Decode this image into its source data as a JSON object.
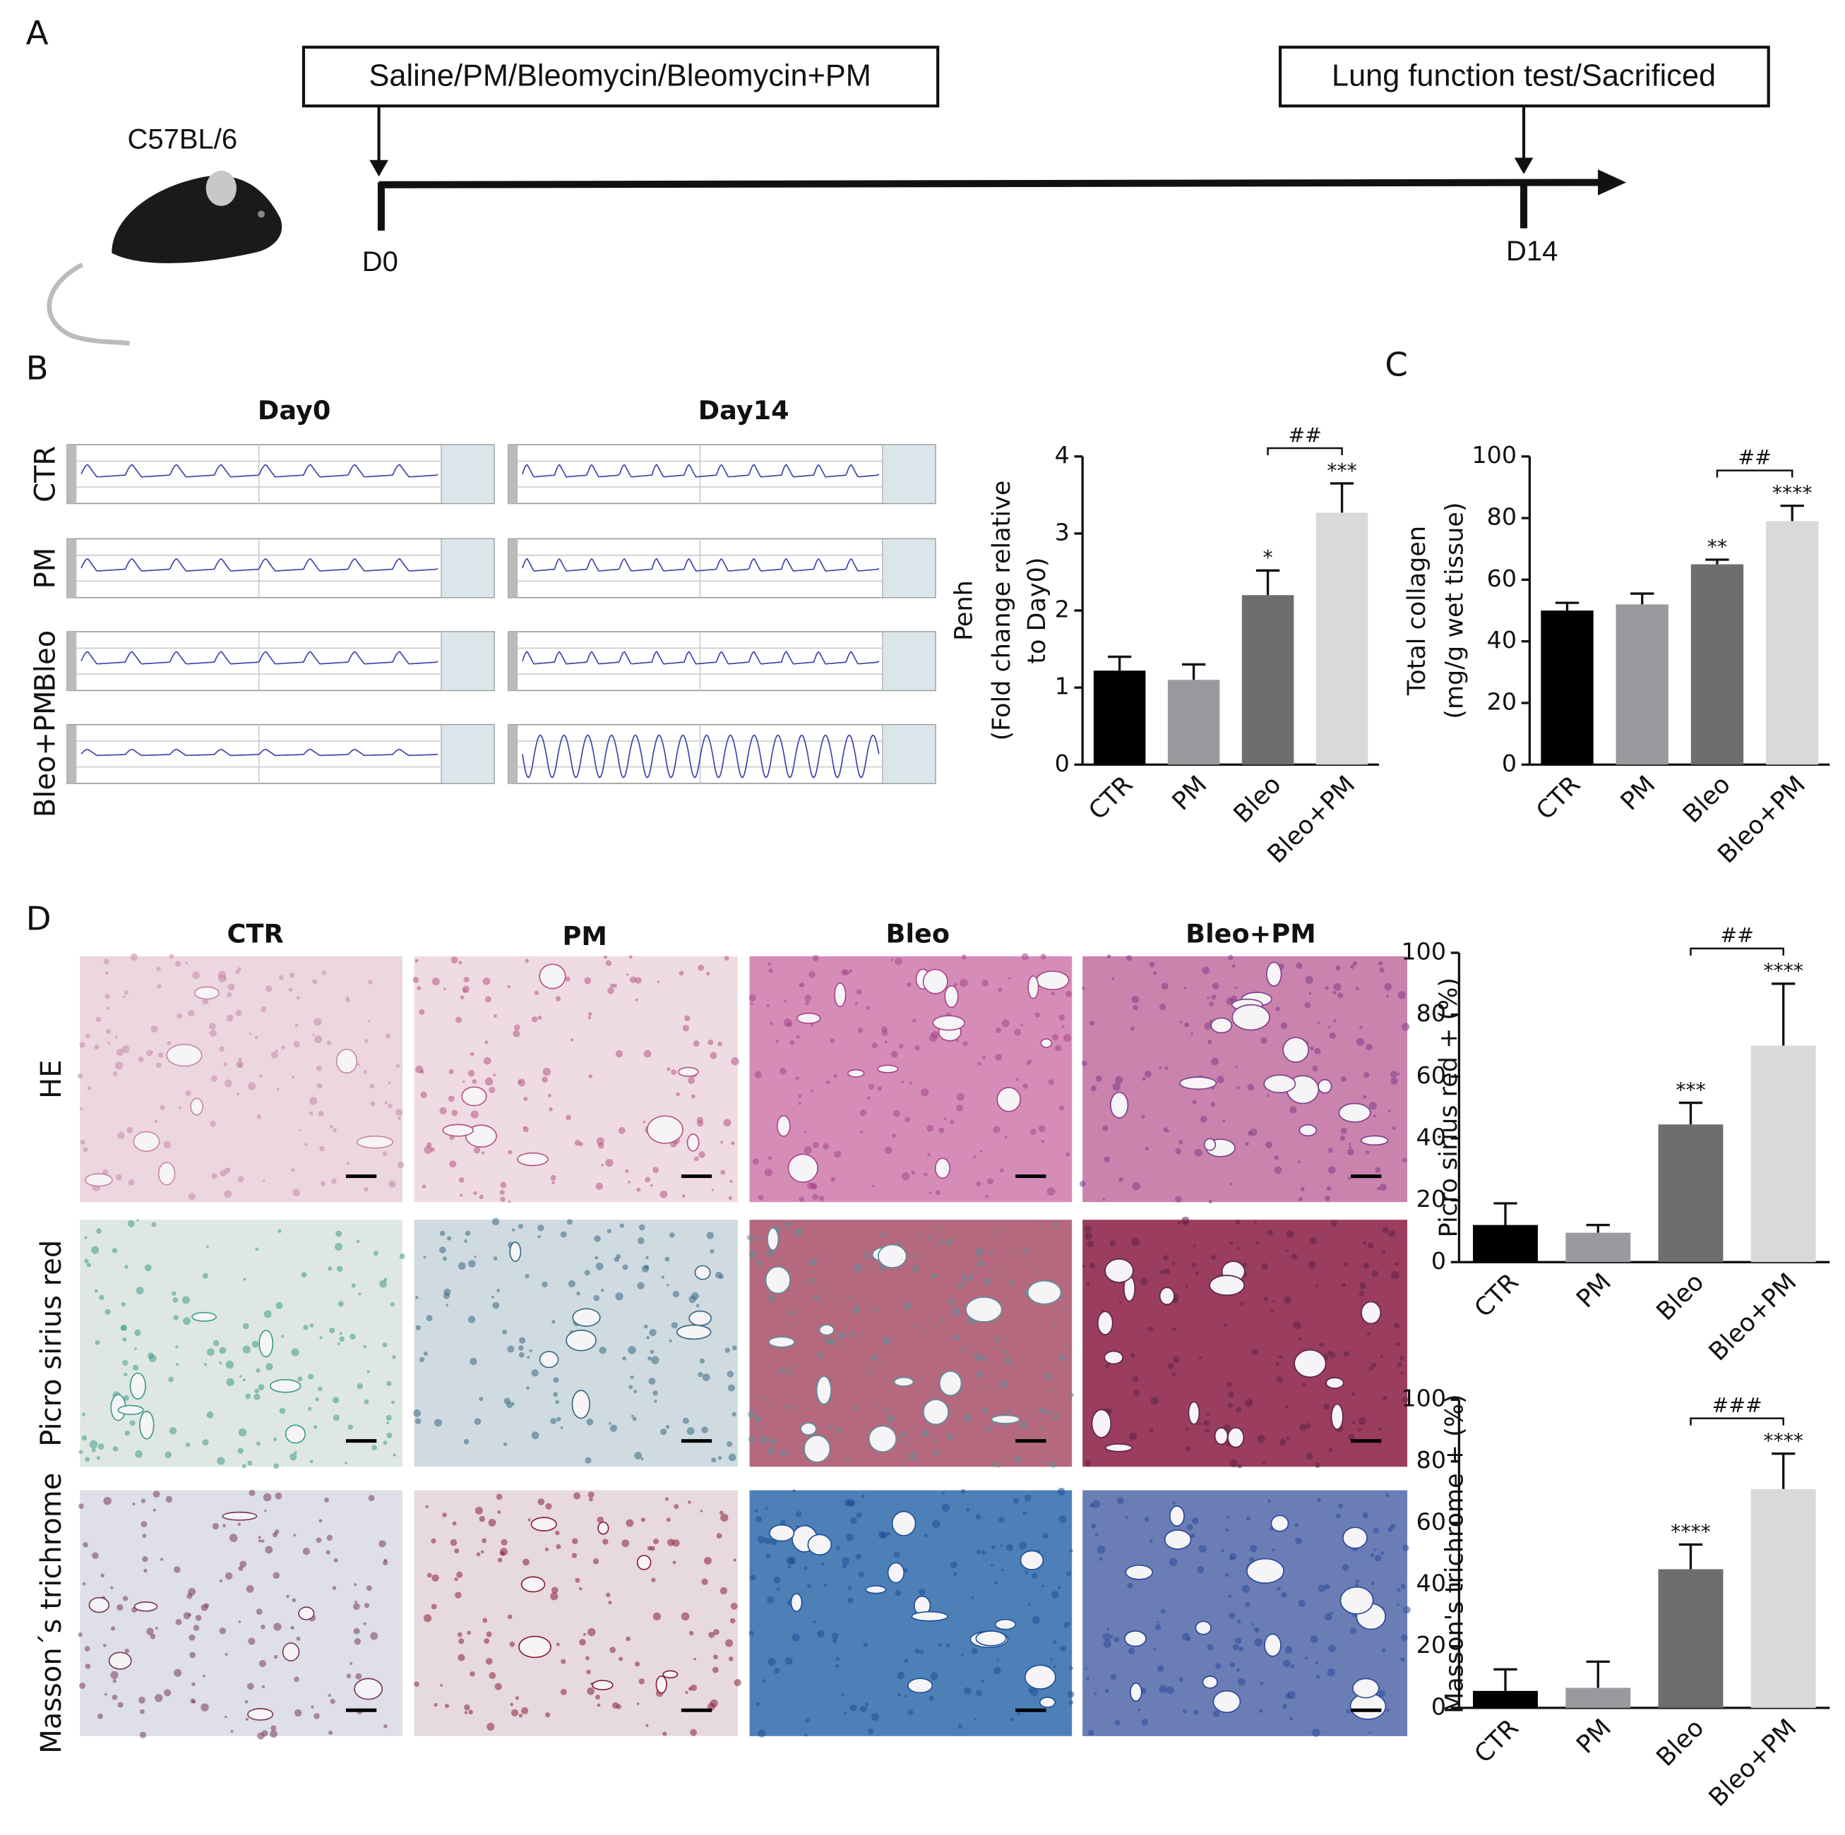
{
  "panels": {
    "a": "A",
    "b": "B",
    "c": "C",
    "d": "D"
  },
  "timeline": {
    "start_box": "Saline/PM/Bleomycin/Bleomycin+PM",
    "end_box": "Lung function test/Sacrificed",
    "strain": "C57BL/6",
    "start_day": "D0",
    "end_day": "D14"
  },
  "traces": {
    "columns": [
      "Day0",
      "Day14"
    ],
    "rows": [
      "CTR",
      "PM",
      "Bleo",
      "Bleo+PM"
    ]
  },
  "histology": {
    "columns": [
      "CTR",
      "PM",
      "Bleo",
      "Bleo+PM"
    ],
    "rows": [
      "HE",
      "Picro sirius red",
      "Masson´s trichrome"
    ]
  },
  "chart_data": [
    {
      "type": "bar",
      "ylabel": [
        "Penh",
        "(Fold change relative",
        "to Day0)"
      ],
      "categories": [
        "CTR",
        "PM",
        "Bleo",
        "Bleo+PM"
      ],
      "values": [
        1.22,
        1.1,
        2.2,
        3.27
      ],
      "errors": [
        0.18,
        0.2,
        0.32,
        0.38
      ],
      "colors": [
        "#000000",
        "#9a9a9e",
        "#6e6e6e",
        "#d9d9d9"
      ],
      "ylim": [
        0,
        4
      ],
      "yticks": [
        0,
        1,
        2,
        3,
        4
      ],
      "stars": [
        null,
        null,
        "*",
        "***"
      ],
      "bracket_label": "##"
    },
    {
      "type": "bar",
      "ylabel": [
        "Total collagen",
        "(mg/g wet tissue)"
      ],
      "categories": [
        "CTR",
        "PM",
        "Bleo",
        "Bleo+PM"
      ],
      "values": [
        50,
        52,
        65,
        79
      ],
      "errors": [
        2.5,
        3.5,
        1.5,
        5
      ],
      "colors": [
        "#000000",
        "#9a9a9e",
        "#6e6e6e",
        "#d9d9d9"
      ],
      "ylim": [
        0,
        100
      ],
      "yticks": [
        0,
        20,
        40,
        60,
        80,
        100
      ],
      "stars": [
        null,
        null,
        "**",
        "****"
      ],
      "bracket_label": "##"
    },
    {
      "type": "bar",
      "ylabel": [
        "Picro sirius red + (%)"
      ],
      "categories": [
        "CTR",
        "PM",
        "Bleo",
        "Bleo+PM"
      ],
      "values": [
        12,
        9.5,
        44.5,
        70
      ],
      "errors": [
        7,
        2.5,
        7,
        20
      ],
      "colors": [
        "#000000",
        "#9a9a9e",
        "#6e6e6e",
        "#d9d9d9"
      ],
      "ylim": [
        0,
        100
      ],
      "yticks": [
        0,
        20,
        40,
        60,
        80,
        100
      ],
      "stars": [
        null,
        null,
        "***",
        "****"
      ],
      "bracket_label": "##"
    },
    {
      "type": "bar",
      "ylabel": [
        "Masson's trichrome + (%)"
      ],
      "categories": [
        "CTR",
        "PM",
        "Bleo",
        "Bleo+PM"
      ],
      "values": [
        5.5,
        6.5,
        45,
        71
      ],
      "errors": [
        7,
        8.5,
        8,
        11.5
      ],
      "colors": [
        "#000000",
        "#9a9a9e",
        "#6e6e6e",
        "#d9d9d9"
      ],
      "ylim": [
        0,
        100
      ],
      "yticks": [
        0,
        20,
        40,
        60,
        80,
        100
      ],
      "stars": [
        null,
        null,
        "****",
        "****"
      ],
      "bracket_label": "###"
    }
  ]
}
